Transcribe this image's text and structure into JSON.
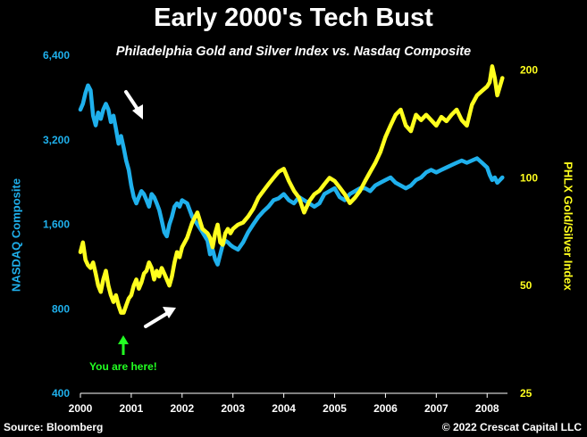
{
  "chart_data": {
    "type": "line",
    "title": "Early 2000's Tech Bust",
    "subtitle": "Philadelphia Gold and Silver Index vs. Nasdaq Composite",
    "x_ticks": [
      "2000",
      "2001",
      "2002",
      "2003",
      "2004",
      "2005",
      "2006",
      "2007",
      "2008"
    ],
    "xlim": [
      2000.0,
      2008.4
    ],
    "left_axis": {
      "label": "NASDAQ Composite",
      "scale": "log",
      "ticks": [
        400,
        800,
        1600,
        3200,
        6400
      ],
      "tick_labels": [
        "400",
        "800",
        "1,600",
        "3,200",
        "6,400"
      ],
      "ylim": [
        400,
        6400
      ]
    },
    "right_axis": {
      "label": "PHLX Gold/Silver Index",
      "scale": "log",
      "ticks": [
        25,
        50,
        100,
        200
      ],
      "tick_labels": [
        "25",
        "50",
        "100",
        "200"
      ],
      "ylim": [
        25,
        220
      ]
    },
    "series": [
      {
        "axis": "left",
        "color": "#1fb0ec",
        "x": [
          2000.0,
          2000.05,
          2000.1,
          2000.15,
          2000.2,
          2000.25,
          2000.3,
          2000.35,
          2000.4,
          2000.45,
          2000.5,
          2000.55,
          2000.6,
          2000.65,
          2000.7,
          2000.75,
          2000.8,
          2000.85,
          2000.9,
          2000.95,
          2001.0,
          2001.05,
          2001.1,
          2001.15,
          2001.2,
          2001.25,
          2001.3,
          2001.35,
          2001.4,
          2001.45,
          2001.5,
          2001.55,
          2001.6,
          2001.65,
          2001.7,
          2001.75,
          2001.8,
          2001.85,
          2001.9,
          2001.95,
          2002.0,
          2002.1,
          2002.2,
          2002.3,
          2002.4,
          2002.5,
          2002.55,
          2002.6,
          2002.65,
          2002.7,
          2002.75,
          2002.8,
          2002.85,
          2002.9,
          2002.95,
          2003.0,
          2003.1,
          2003.2,
          2003.3,
          2003.4,
          2003.5,
          2003.6,
          2003.7,
          2003.8,
          2003.9,
          2004.0,
          2004.1,
          2004.2,
          2004.3,
          2004.4,
          2004.5,
          2004.6,
          2004.7,
          2004.8,
          2004.9,
          2005.0,
          2005.1,
          2005.2,
          2005.3,
          2005.4,
          2005.5,
          2005.6,
          2005.7,
          2005.8,
          2005.9,
          2006.0,
          2006.1,
          2006.2,
          2006.3,
          2006.4,
          2006.5,
          2006.6,
          2006.7,
          2006.8,
          2006.9,
          2007.0,
          2007.1,
          2007.2,
          2007.3,
          2007.4,
          2007.5,
          2007.6,
          2007.7,
          2007.8,
          2007.9,
          2008.0,
          2008.05,
          2008.1,
          2008.15,
          2008.2,
          2008.25,
          2008.3
        ],
        "y": [
          4100,
          4300,
          4700,
          5000,
          4800,
          3900,
          3600,
          4000,
          3800,
          4100,
          4300,
          4100,
          3700,
          3900,
          3500,
          3100,
          3300,
          3000,
          2700,
          2500,
          2200,
          2000,
          1900,
          2000,
          2100,
          2050,
          1950,
          1850,
          2050,
          2000,
          1900,
          1800,
          1650,
          1500,
          1450,
          1600,
          1700,
          1850,
          1900,
          1850,
          1950,
          1900,
          1700,
          1600,
          1500,
          1400,
          1250,
          1300,
          1200,
          1150,
          1250,
          1350,
          1400,
          1380,
          1350,
          1330,
          1300,
          1380,
          1500,
          1600,
          1700,
          1780,
          1850,
          1950,
          1980,
          2050,
          1950,
          1900,
          2000,
          1950,
          1900,
          1850,
          1900,
          2050,
          2100,
          2150,
          2000,
          1950,
          2050,
          2100,
          2150,
          2150,
          2100,
          2200,
          2250,
          2300,
          2350,
          2250,
          2200,
          2150,
          2200,
          2300,
          2350,
          2450,
          2500,
          2450,
          2500,
          2550,
          2600,
          2650,
          2700,
          2650,
          2700,
          2750,
          2650,
          2550,
          2400,
          2300,
          2350,
          2250,
          2300,
          2350
        ]
      },
      {
        "axis": "right",
        "color": "#ffff1e",
        "x": [
          2000.0,
          2000.05,
          2000.1,
          2000.15,
          2000.2,
          2000.25,
          2000.3,
          2000.35,
          2000.4,
          2000.45,
          2000.5,
          2000.55,
          2000.6,
          2000.65,
          2000.7,
          2000.75,
          2000.8,
          2000.85,
          2000.9,
          2000.95,
          2001.0,
          2001.05,
          2001.1,
          2001.15,
          2001.2,
          2001.25,
          2001.3,
          2001.35,
          2001.4,
          2001.45,
          2001.5,
          2001.55,
          2001.6,
          2001.65,
          2001.7,
          2001.75,
          2001.8,
          2001.85,
          2001.9,
          2001.95,
          2002.0,
          2002.1,
          2002.2,
          2002.3,
          2002.4,
          2002.5,
          2002.55,
          2002.6,
          2002.65,
          2002.7,
          2002.75,
          2002.8,
          2002.85,
          2002.9,
          2002.95,
          2003.0,
          2003.1,
          2003.2,
          2003.3,
          2003.4,
          2003.5,
          2003.6,
          2003.7,
          2003.8,
          2003.9,
          2004.0,
          2004.1,
          2004.2,
          2004.3,
          2004.4,
          2004.5,
          2004.6,
          2004.7,
          2004.8,
          2004.9,
          2005.0,
          2005.1,
          2005.2,
          2005.3,
          2005.4,
          2005.5,
          2005.6,
          2005.7,
          2005.8,
          2005.9,
          2006.0,
          2006.1,
          2006.2,
          2006.3,
          2006.4,
          2006.5,
          2006.6,
          2006.7,
          2006.8,
          2006.9,
          2007.0,
          2007.1,
          2007.2,
          2007.3,
          2007.4,
          2007.5,
          2007.6,
          2007.7,
          2007.8,
          2007.9,
          2008.0,
          2008.05,
          2008.1,
          2008.15,
          2008.2,
          2008.25,
          2008.3
        ],
        "y": [
          62,
          66,
          59,
          57,
          56,
          58,
          54,
          50,
          48,
          52,
          55,
          50,
          47,
          45,
          47,
          44,
          42,
          42,
          44,
          46,
          47,
          50,
          52,
          49,
          51,
          54,
          55,
          58,
          56,
          52,
          55,
          53,
          56,
          54,
          52,
          50,
          53,
          58,
          62,
          60,
          64,
          68,
          75,
          80,
          72,
          70,
          68,
          64,
          70,
          74,
          66,
          65,
          70,
          72,
          70,
          72,
          74,
          75,
          78,
          82,
          88,
          92,
          96,
          100,
          104,
          106,
          98,
          92,
          88,
          80,
          86,
          90,
          92,
          96,
          100,
          98,
          94,
          90,
          85,
          88,
          92,
          98,
          104,
          110,
          118,
          130,
          140,
          150,
          155,
          140,
          135,
          150,
          145,
          150,
          145,
          140,
          148,
          144,
          150,
          155,
          145,
          140,
          160,
          170,
          175,
          180,
          185,
          205,
          190,
          170,
          180,
          190
        ]
      }
    ],
    "annotation": "You are here!"
  },
  "footer": {
    "source": "Source: Bloomberg",
    "copyright": "© 2022 Crescat Capital LLC"
  }
}
